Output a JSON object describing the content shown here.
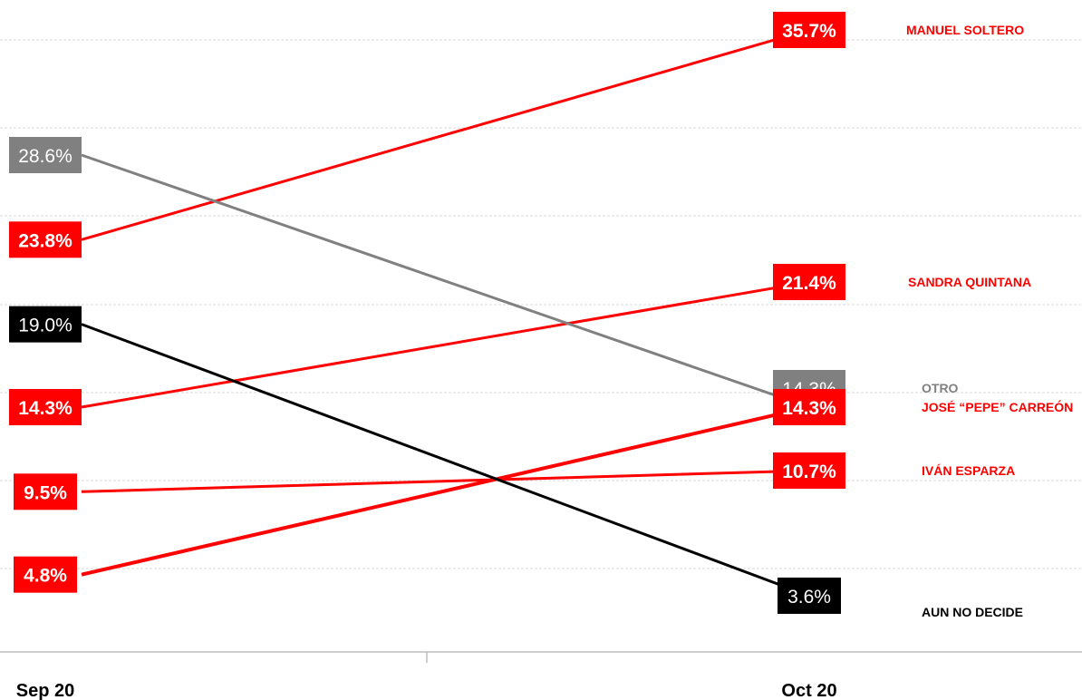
{
  "chart_data": {
    "type": "line",
    "title": "",
    "xlabel": "",
    "ylabel": "",
    "categories": [
      "Sep 20",
      "Oct 20"
    ],
    "ylim": [
      0,
      40
    ],
    "grid": true,
    "legend": "right",
    "series": [
      {
        "name": "MANUEL SOLTERO",
        "values": [
          23.8,
          35.7
        ],
        "labels": [
          "23.8%",
          "35.7%"
        ],
        "color": "#ff0000",
        "bold": true
      },
      {
        "name": "SANDRA QUINTANA",
        "values": [
          14.3,
          21.4
        ],
        "labels": [
          "14.3%",
          "21.4%"
        ],
        "color": "#ff0000",
        "bold": true
      },
      {
        "name": "OTRO",
        "values": [
          28.6,
          14.3
        ],
        "labels": [
          "28.6%",
          "14.3%"
        ],
        "color": "#808080",
        "bold": false
      },
      {
        "name": "JOSÉ “PEPE” CARREÓN",
        "values": [
          4.8,
          14.3
        ],
        "labels": [
          "4.8%",
          "14.3%"
        ],
        "color": "#ff0000",
        "bold": true
      },
      {
        "name": "IVÁN ESPARZA",
        "values": [
          9.5,
          10.7
        ],
        "labels": [
          "9.5%",
          "10.7%"
        ],
        "color": "#ff0000",
        "bold": true
      },
      {
        "name": "AUN NO DECIDE",
        "values": [
          19.0,
          3.6
        ],
        "labels": [
          "19.0%",
          "3.6%"
        ],
        "color": "#000000",
        "bold": false
      }
    ]
  }
}
